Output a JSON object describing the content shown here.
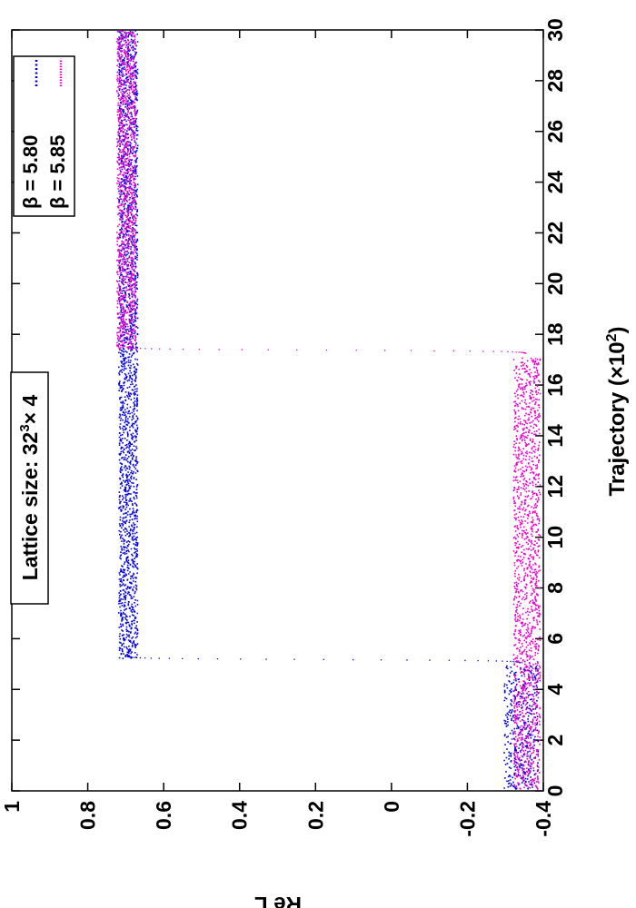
{
  "chart_data": {
    "type": "scatter",
    "orientation": "rotated-90-cw",
    "xlabel": "Trajectory (×10²)",
    "xlabel_main": "Trajectory (×10",
    "xlabel_sup": "2",
    "xlabel_close": ")",
    "ylabel": "Re L",
    "xlim": [
      0,
      30
    ],
    "ylim": [
      -0.4,
      1
    ],
    "xticks": [
      "0",
      "2",
      "4",
      "6",
      "8",
      "10",
      "12",
      "14",
      "16",
      "18",
      "20",
      "22",
      "24",
      "26",
      "28",
      "30"
    ],
    "yticks": [
      "-0.4",
      "-0.2",
      "0",
      "0.2",
      "0.4",
      "0.6",
      "0.8",
      "1"
    ],
    "annotation": {
      "text": "Lattice size: 32³× 4",
      "main": "Lattice size: 32",
      "sup": "3",
      "tail": "× 4"
    },
    "legend_position": "top-right",
    "series": [
      {
        "name": "β = 5.80",
        "color": "#0000dd",
        "style": "dotted",
        "segments": [
          {
            "x_start": 0.1,
            "x_end": 4.95,
            "center": -0.34,
            "noise": 0.045
          },
          {
            "transition_x": 5.2,
            "from": -0.34,
            "to": 0.7
          },
          {
            "x_start": 5.25,
            "x_end": 30.0,
            "center": 0.695,
            "noise": 0.025
          }
        ]
      },
      {
        "name": "β = 5.85",
        "color": "#ee00cc",
        "style": "dotted",
        "segments": [
          {
            "x_start": 0.1,
            "x_end": 17.1,
            "center": -0.355,
            "noise": 0.035
          },
          {
            "transition_x": 17.4,
            "from": -0.355,
            "to": 0.7
          },
          {
            "x_start": 17.45,
            "x_end": 30.0,
            "center": 0.7,
            "noise": 0.025
          }
        ]
      }
    ]
  }
}
